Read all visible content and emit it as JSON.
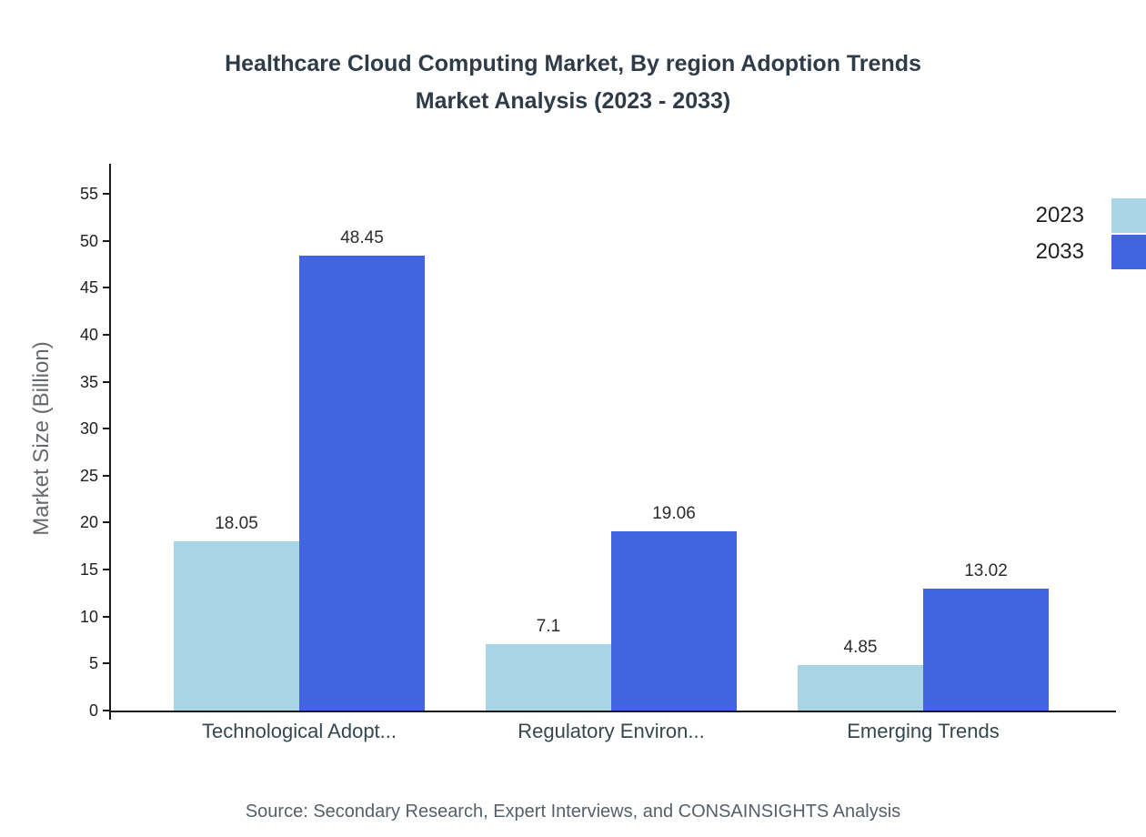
{
  "title": {
    "line1": "Healthcare Cloud Computing Market, By region Adoption Trends",
    "line2": "Market Analysis (2023 - 2033)"
  },
  "source": "Source: Secondary Research, Expert Interviews, and CONSAINSIGHTS Analysis",
  "chart_data": {
    "type": "bar",
    "title": "Healthcare Cloud Computing Market, By region Adoption Trends Market Analysis (2023 - 2033)",
    "categories": [
      "Technological Adopt...",
      "Regulatory Environ...",
      "Emerging Trends"
    ],
    "series": [
      {
        "name": "2023",
        "color": "#a8d4e6",
        "values": [
          18.05,
          7.1,
          4.85
        ]
      },
      {
        "name": "2033",
        "color": "#4364e1",
        "values": [
          48.45,
          19.06,
          13.02
        ]
      }
    ],
    "xlabel": "",
    "ylabel": "Market Size (Billion)",
    "ylim": [
      0,
      55
    ],
    "yticks": [
      0,
      5,
      10,
      15,
      20,
      25,
      30,
      35,
      40,
      45,
      50,
      55
    ],
    "grid": false,
    "legend_position": "top-right"
  }
}
